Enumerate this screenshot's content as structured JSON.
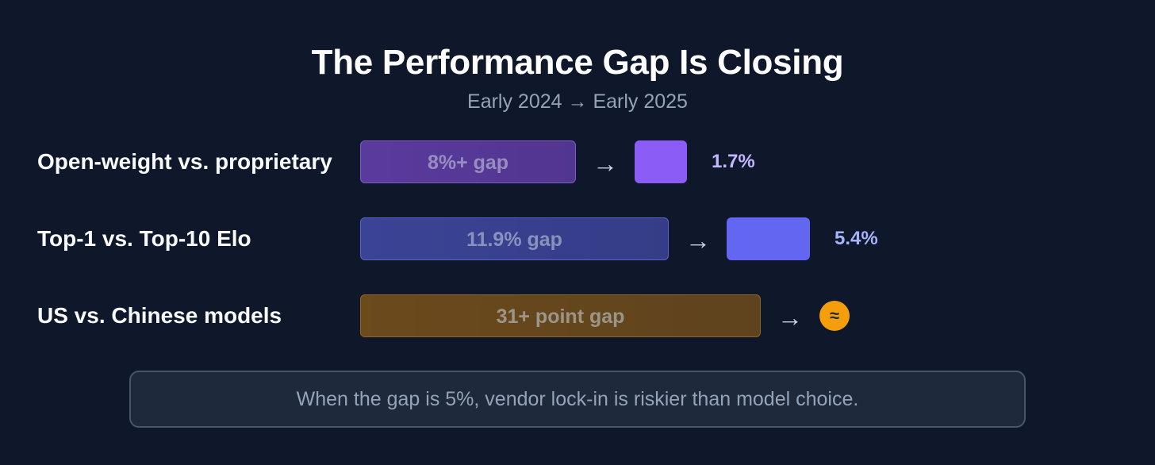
{
  "chart_data": {
    "type": "bar",
    "title": "The Performance Gap Is Closing",
    "subtitle": "Early 2024 → Early 2025",
    "rows": [
      {
        "label": "Open-weight vs. proprietary",
        "before_label": "8%+ gap",
        "before_value": 8,
        "after_label": "1.7%",
        "after_value": 1.7,
        "color": "#8b5cf6",
        "before_fill": "#5b3a9e",
        "before_border": "#7c5cc4",
        "value_color": "#c4b5fd"
      },
      {
        "label": "Top-1 vs. Top-10 Elo",
        "before_label": "11.9% gap",
        "before_value": 11.9,
        "after_label": "5.4%",
        "after_value": 5.4,
        "color": "#6366f1",
        "before_fill": "#3b4396",
        "before_border": "#5b62c4",
        "value_color": "#a5b4fc"
      },
      {
        "label": "US vs. Chinese models",
        "before_label": "31+ point gap",
        "before_value": 31,
        "after_symbol": "≈",
        "color": "#f59e0b",
        "before_fill": "#6b4a1c",
        "before_border": "#8c6425",
        "value_color": "#f59e0b"
      }
    ],
    "arrow": "→",
    "footer": "When the gap is 5%, vendor lock-in is riskier than model choice."
  }
}
